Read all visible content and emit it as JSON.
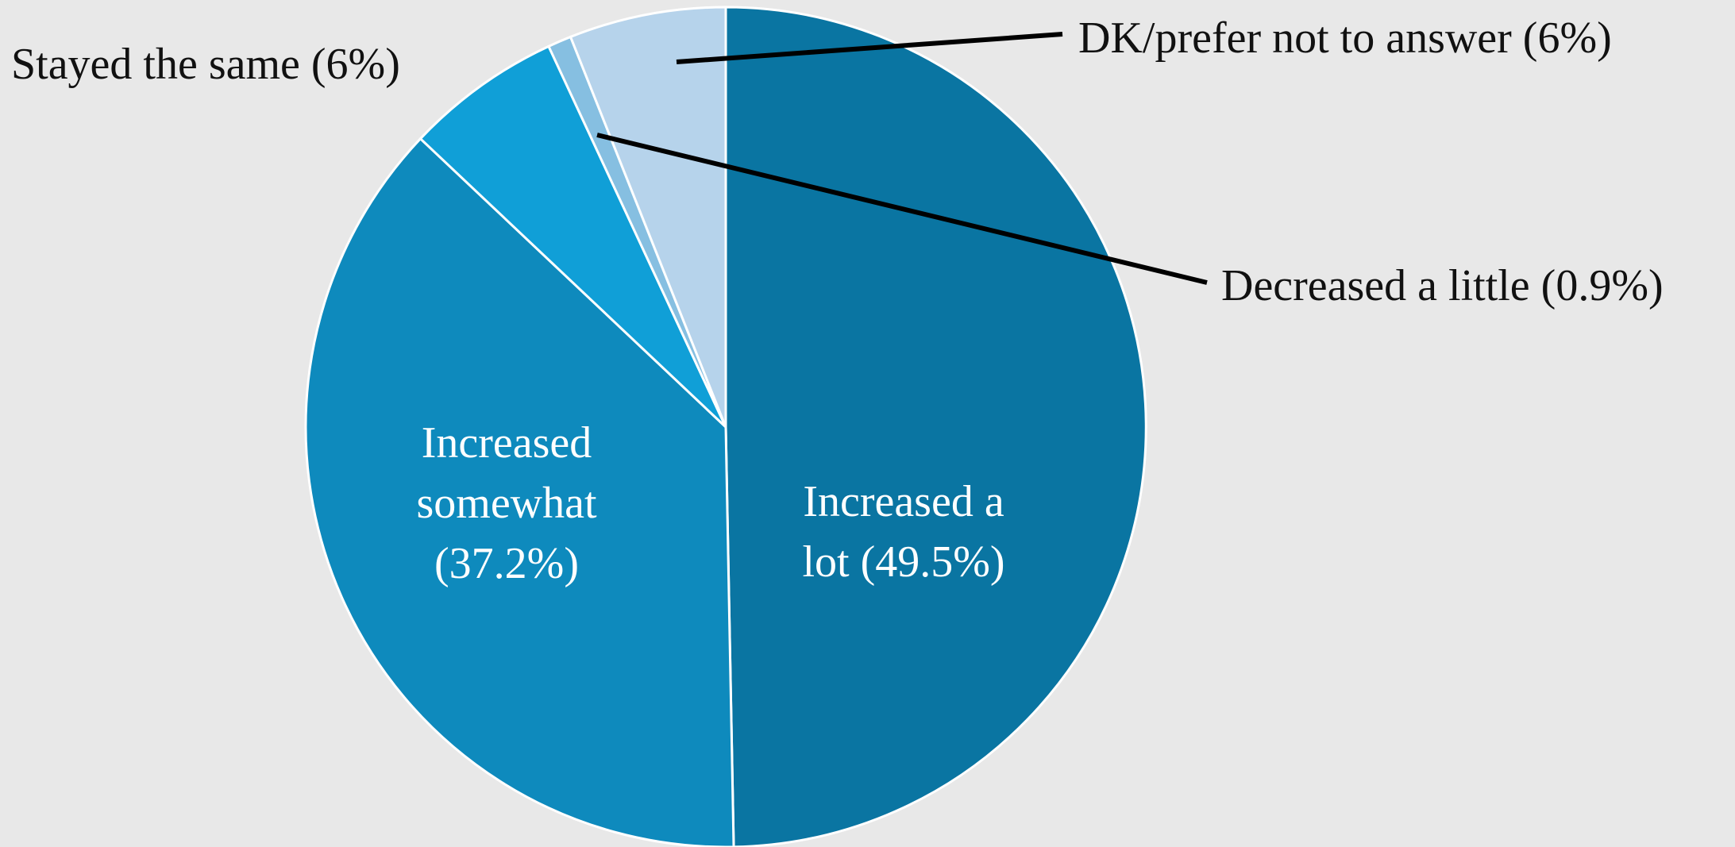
{
  "chart_data": {
    "type": "pie",
    "title": "",
    "slices": [
      {
        "label": "Increased a lot",
        "value": 49.5,
        "display_lines": [
          "Increased a",
          "lot (49.5%)"
        ],
        "color": "#0a75a2"
      },
      {
        "label": "Increased somewhat",
        "value": 37.2,
        "display_lines": [
          "Increased",
          "somewhat",
          "(37.2%)"
        ],
        "color": "#0e8abd"
      },
      {
        "label": "Stayed the same",
        "value": 6,
        "display_lines": [
          "Stayed the same (6%)"
        ],
        "color": "#109fd7"
      },
      {
        "label": "Decreased a little",
        "value": 0.9,
        "display_lines": [
          "Decreased a little (0.9%)"
        ],
        "color": "#86bfe1"
      },
      {
        "label": "DK/prefer not to answer",
        "value": 6,
        "display_lines": [
          "DK/prefer not to answer (6%)"
        ],
        "color": "#b6d3eb"
      }
    ],
    "start_angle": "12 o'clock",
    "direction": "clockwise",
    "legend": "none",
    "background": "#e8e8e8"
  }
}
